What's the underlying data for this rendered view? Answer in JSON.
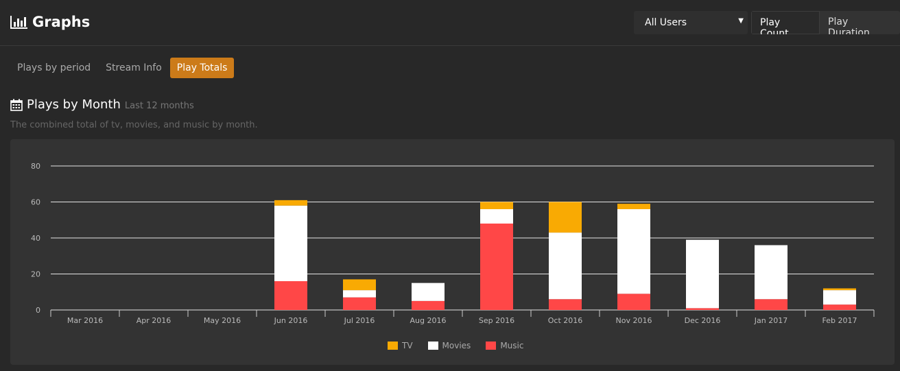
{
  "header": {
    "title": "Graphs",
    "user_select": "All Users",
    "toggle": [
      {
        "label": "Play Count",
        "active": true
      },
      {
        "label": "Play Duration",
        "active": false
      }
    ]
  },
  "tabs": [
    {
      "label": "Plays by period",
      "active": false
    },
    {
      "label": "Stream Info",
      "active": false
    },
    {
      "label": "Play Totals",
      "active": true
    }
  ],
  "section": {
    "title": "Plays by Month",
    "subtitle": "Last 12 months",
    "description": "The combined total of tv, movies, and music by month."
  },
  "colors": {
    "tv": "#F9AA03",
    "movies": "#FFFFFF",
    "music": "#FF4747",
    "accent": "#CC7B19"
  },
  "chart_data": {
    "type": "bar",
    "stacked": true,
    "title": "Plays by Month",
    "xlabel": "",
    "ylabel": "",
    "ylim": [
      0,
      80
    ],
    "yticks": [
      0,
      20,
      40,
      60,
      80
    ],
    "grid": true,
    "legend_position": "bottom",
    "categories": [
      "Mar 2016",
      "Apr 2016",
      "May 2016",
      "Jun 2016",
      "Jul 2016",
      "Aug 2016",
      "Sep 2016",
      "Oct 2016",
      "Nov 2016",
      "Dec 2016",
      "Jan 2017",
      "Feb 2017"
    ],
    "series": [
      {
        "name": "TV",
        "color": "#F9AA03",
        "values": [
          0,
          0,
          0,
          3,
          6,
          0,
          4,
          17,
          3,
          0,
          0,
          1
        ]
      },
      {
        "name": "Movies",
        "color": "#FFFFFF",
        "values": [
          0,
          0,
          0,
          42,
          4,
          10,
          8,
          37,
          47,
          38,
          30,
          8
        ]
      },
      {
        "name": "Music",
        "color": "#FF4747",
        "values": [
          0,
          0,
          0,
          16,
          7,
          5,
          48,
          6,
          9,
          1,
          6,
          3
        ]
      }
    ]
  }
}
